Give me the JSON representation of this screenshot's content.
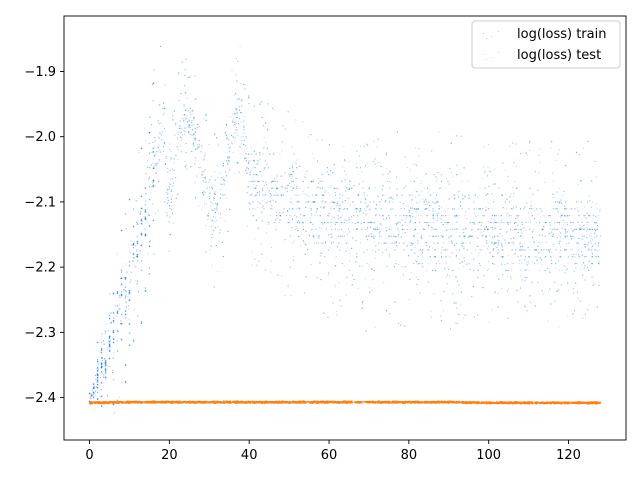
{
  "chart_data": {
    "type": "scatter",
    "title": "",
    "xlabel": "",
    "ylabel": "",
    "xlim": [
      -6.4,
      134.4
    ],
    "ylim": [
      -2.465,
      -1.815
    ],
    "xticks": [
      0,
      20,
      40,
      60,
      80,
      100,
      120
    ],
    "xtick_labels": [
      "0",
      "20",
      "40",
      "60",
      "80",
      "100",
      "120"
    ],
    "yticks": [
      -2.4,
      -2.3,
      -2.2,
      -2.1,
      -2.0,
      -1.9
    ],
    "ytick_labels": [
      "−2.4",
      "−2.3",
      "−2.2",
      "−2.1",
      "−2.0",
      "−1.9"
    ],
    "grid": false,
    "legend_position": "top-right",
    "series": [
      {
        "name": "log(loss) train",
        "color": "#1f77ff",
        "envelope": [
          {
            "x": 0,
            "low": -2.42,
            "high": -2.39,
            "center": -2.405
          },
          {
            "x": 2,
            "low": -2.42,
            "high": -2.33,
            "center": -2.37
          },
          {
            "x": 4,
            "low": -2.42,
            "high": -2.26,
            "center": -2.34
          },
          {
            "x": 6,
            "low": -2.43,
            "high": -2.18,
            "center": -2.3
          },
          {
            "x": 8,
            "low": -2.4,
            "high": -2.12,
            "center": -2.26
          },
          {
            "x": 10,
            "low": -2.36,
            "high": -2.07,
            "center": -2.22
          },
          {
            "x": 12,
            "low": -2.32,
            "high": -2.02,
            "center": -2.17
          },
          {
            "x": 14,
            "low": -2.28,
            "high": -1.97,
            "center": -2.12
          },
          {
            "x": 16,
            "low": -2.2,
            "high": -1.9,
            "center": -2.05
          },
          {
            "x": 18,
            "low": -2.08,
            "high": -1.85,
            "center": -1.97
          },
          {
            "x": 20,
            "low": -2.22,
            "high": -1.98,
            "center": -2.1
          },
          {
            "x": 22,
            "low": -2.1,
            "high": -1.88,
            "center": -2.0
          },
          {
            "x": 24,
            "low": -2.07,
            "high": -1.86,
            "center": -1.97
          },
          {
            "x": 26,
            "low": -2.1,
            "high": -1.88,
            "center": -1.99
          },
          {
            "x": 28,
            "low": -2.15,
            "high": -1.93,
            "center": -2.04
          },
          {
            "x": 30,
            "low": -2.22,
            "high": -1.98,
            "center": -2.1
          },
          {
            "x": 32,
            "low": -2.25,
            "high": -2.0,
            "center": -2.12
          },
          {
            "x": 34,
            "low": -2.18,
            "high": -1.95,
            "center": -2.06
          },
          {
            "x": 36,
            "low": -2.08,
            "high": -1.88,
            "center": -1.98
          },
          {
            "x": 38,
            "low": -2.06,
            "high": -1.85,
            "center": -1.96
          },
          {
            "x": 40,
            "low": -2.2,
            "high": -1.93,
            "center": -2.06
          },
          {
            "x": 45,
            "low": -2.23,
            "high": -1.95,
            "center": -2.08
          },
          {
            "x": 50,
            "low": -2.26,
            "high": -1.96,
            "center": -2.1
          },
          {
            "x": 60,
            "low": -2.28,
            "high": -1.98,
            "center": -2.12
          },
          {
            "x": 70,
            "low": -2.3,
            "high": -1.99,
            "center": -2.13
          },
          {
            "x": 80,
            "low": -2.3,
            "high": -1.99,
            "center": -2.13
          },
          {
            "x": 90,
            "low": -2.3,
            "high": -1.99,
            "center": -2.14
          },
          {
            "x": 100,
            "low": -2.3,
            "high": -2.0,
            "center": -2.14
          },
          {
            "x": 110,
            "low": -2.3,
            "high": -2.0,
            "center": -2.15
          },
          {
            "x": 120,
            "low": -2.29,
            "high": -2.0,
            "center": -2.15
          },
          {
            "x": 128,
            "low": -2.27,
            "high": -2.01,
            "center": -2.15
          }
        ]
      },
      {
        "name": "log(loss) test",
        "color": "#ff7f0e",
        "x": [
          0,
          10,
          20,
          30,
          40,
          50,
          60,
          70,
          80,
          90,
          100,
          110,
          120,
          128
        ],
        "values": [
          -2.408,
          -2.407,
          -2.407,
          -2.407,
          -2.407,
          -2.407,
          -2.407,
          -2.407,
          -2.407,
          -2.407,
          -2.408,
          -2.408,
          -2.408,
          -2.408
        ]
      }
    ]
  }
}
